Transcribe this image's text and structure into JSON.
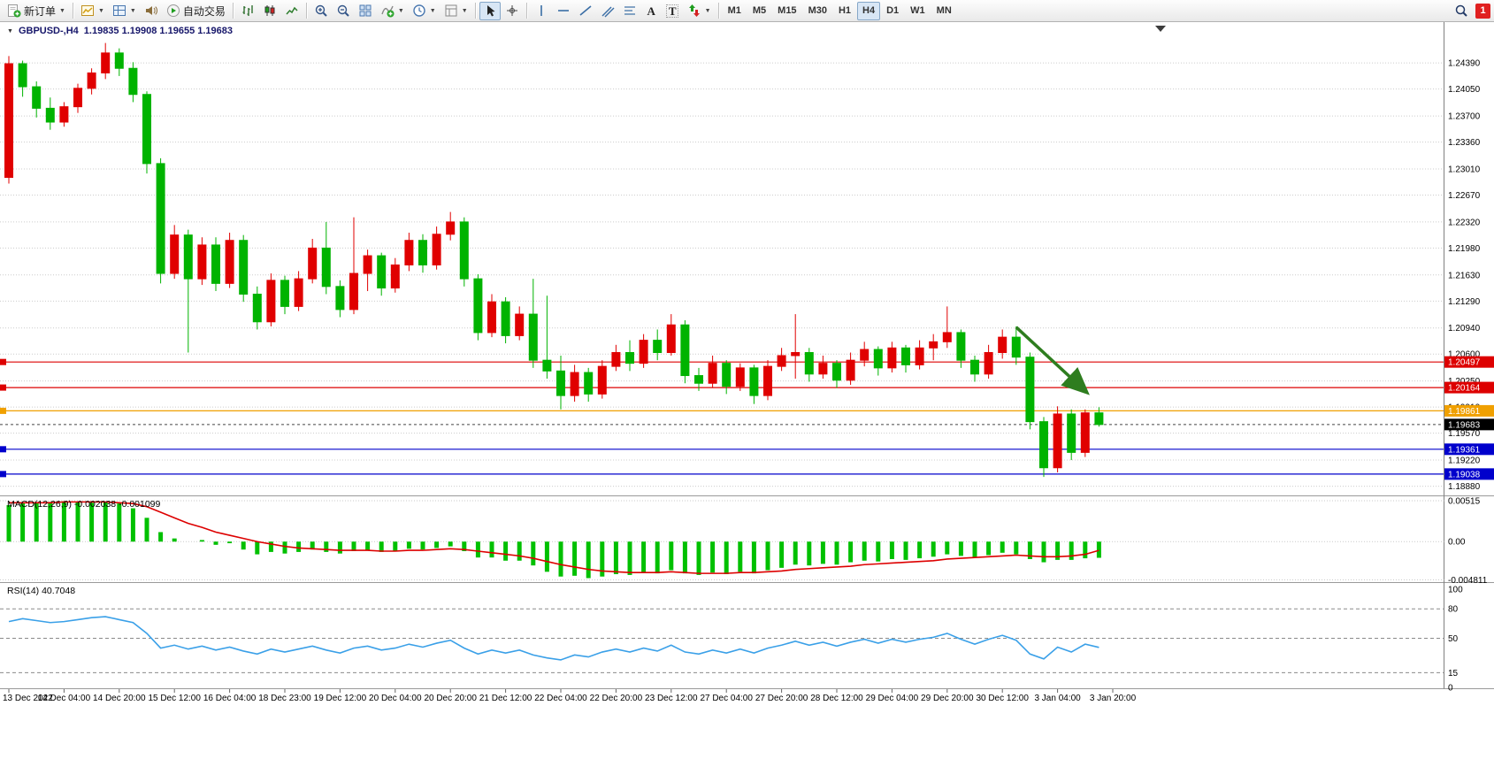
{
  "toolbar": {
    "new_order": "新订单",
    "autotrading": "自动交易",
    "timeframes": [
      "M1",
      "M5",
      "M15",
      "M30",
      "H1",
      "H4",
      "D1",
      "W1",
      "MN"
    ],
    "active_timeframe": "H4",
    "notification_count": "1",
    "text_tool_glyph": "A",
    "label_tool_glyph": "T"
  },
  "chart_header": {
    "symbol_period": "GBPUSD-,H4",
    "ohlc": "1.19835 1.19908 1.19655 1.19683"
  },
  "macd_header": "MACD(12,26,9) -0.002038 -0.001099",
  "rsi_header": "RSI(14) 40.7048",
  "chart_data": [
    {
      "type": "candlestick",
      "title": "GBPUSD-,H4",
      "ohlc_display": [
        1.19835,
        1.19908,
        1.19655,
        1.19683
      ],
      "up_color": "#e00000",
      "down_color": "#00b300",
      "y_ticks": [
        "1.24390",
        "1.24050",
        "1.23700",
        "1.23360",
        "1.23010",
        "1.22670",
        "1.22320",
        "1.21980",
        "1.21630",
        "1.21290",
        "1.20940",
        "1.20600",
        "1.20250",
        "1.19910",
        "1.19570",
        "1.19220",
        "1.18880"
      ],
      "price_lines": [
        {
          "value": 1.20497,
          "label": "1.20497",
          "color": "#dd0000"
        },
        {
          "value": 1.20164,
          "label": "1.20164",
          "color": "#dd0000"
        },
        {
          "value": 1.19861,
          "label": "1.19861",
          "color": "#f0a000"
        },
        {
          "value": 1.19361,
          "label": "1.19361",
          "color": "#0000cc"
        },
        {
          "value": 1.19038,
          "label": "1.19038",
          "color": "#0000cc"
        }
      ],
      "current_price": {
        "value": 1.19683,
        "label": "1.19683",
        "color": "#000000"
      },
      "trend_arrow": {
        "from": {
          "index": 73,
          "price": 1.2095
        },
        "to": {
          "index": 78,
          "price": 1.2012
        },
        "color": "#2e7d1f"
      },
      "x_labels": [
        {
          "i": 0,
          "t": "13 Dec 2022"
        },
        {
          "i": 4,
          "t": "14 Dec 04:00"
        },
        {
          "i": 8,
          "t": "14 Dec 20:00"
        },
        {
          "i": 12,
          "t": "15 Dec 12:00"
        },
        {
          "i": 16,
          "t": "16 Dec 04:00"
        },
        {
          "i": 20,
          "t": "18 Dec 23:00"
        },
        {
          "i": 24,
          "t": "19 Dec 12:00"
        },
        {
          "i": 28,
          "t": "20 Dec 04:00"
        },
        {
          "i": 32,
          "t": "20 Dec 20:00"
        },
        {
          "i": 36,
          "t": "21 Dec 12:00"
        },
        {
          "i": 40,
          "t": "22 Dec 04:00"
        },
        {
          "i": 44,
          "t": "22 Dec 20:00"
        },
        {
          "i": 48,
          "t": "23 Dec 12:00"
        },
        {
          "i": 52,
          "t": "27 Dec 04:00"
        },
        {
          "i": 56,
          "t": "27 Dec 20:00"
        },
        {
          "i": 60,
          "t": "28 Dec 12:00"
        },
        {
          "i": 64,
          "t": "29 Dec 04:00"
        },
        {
          "i": 68,
          "t": "29 Dec 20:00"
        },
        {
          "i": 72,
          "t": "30 Dec 12:00"
        },
        {
          "i": 76,
          "t": "3 Jan 04:00"
        },
        {
          "i": 80,
          "t": "3 Jan 20:00"
        }
      ],
      "candles": [
        [
          1.229,
          1.2448,
          1.2282,
          1.2438
        ],
        [
          1.2438,
          1.2442,
          1.2395,
          1.2408
        ],
        [
          1.2408,
          1.2415,
          1.2368,
          1.238
        ],
        [
          1.238,
          1.2394,
          1.2352,
          1.2362
        ],
        [
          1.2362,
          1.2388,
          1.2356,
          1.2382
        ],
        [
          1.2382,
          1.2412,
          1.2374,
          1.2406
        ],
        [
          1.2406,
          1.2432,
          1.2398,
          1.2426
        ],
        [
          1.2426,
          1.2465,
          1.2418,
          1.2452
        ],
        [
          1.2452,
          1.2458,
          1.2422,
          1.2432
        ],
        [
          1.2432,
          1.244,
          1.2388,
          1.2398
        ],
        [
          1.2398,
          1.2402,
          1.2295,
          1.2308
        ],
        [
          1.2308,
          1.2315,
          1.2152,
          1.2165
        ],
        [
          1.2165,
          1.2228,
          1.2158,
          1.2215
        ],
        [
          1.2215,
          1.2222,
          1.2062,
          1.2158
        ],
        [
          1.2158,
          1.2212,
          1.215,
          1.2202
        ],
        [
          1.2202,
          1.2212,
          1.2142,
          1.2152
        ],
        [
          1.2152,
          1.2218,
          1.2146,
          1.2208
        ],
        [
          1.2208,
          1.2215,
          1.2128,
          1.2138
        ],
        [
          1.2138,
          1.2148,
          1.2092,
          1.2102
        ],
        [
          1.2102,
          1.2165,
          1.2096,
          1.2156
        ],
        [
          1.2156,
          1.2162,
          1.2112,
          1.2122
        ],
        [
          1.2122,
          1.2168,
          1.2116,
          1.2158
        ],
        [
          1.2158,
          1.221,
          1.2152,
          1.2198
        ],
        [
          1.2198,
          1.2232,
          1.2138,
          1.2148
        ],
        [
          1.2148,
          1.2156,
          1.2108,
          1.2118
        ],
        [
          1.2118,
          1.2238,
          1.2112,
          1.2165
        ],
        [
          1.2165,
          1.2196,
          1.2142,
          1.2188
        ],
        [
          1.2188,
          1.2192,
          1.2136,
          1.2146
        ],
        [
          1.2146,
          1.2185,
          1.214,
          1.2176
        ],
        [
          1.2176,
          1.2218,
          1.2168,
          1.2208
        ],
        [
          1.2208,
          1.2216,
          1.2166,
          1.2176
        ],
        [
          1.2176,
          1.2226,
          1.217,
          1.2216
        ],
        [
          1.2216,
          1.2245,
          1.2208,
          1.2232
        ],
        [
          1.2232,
          1.2238,
          1.2148,
          1.2158
        ],
        [
          1.2158,
          1.2164,
          1.2078,
          1.2088
        ],
        [
          1.2088,
          1.2138,
          1.2082,
          1.2128
        ],
        [
          1.2128,
          1.2134,
          1.2074,
          1.2084
        ],
        [
          1.2084,
          1.2122,
          1.2078,
          1.2112
        ],
        [
          1.2112,
          1.2158,
          1.2042,
          1.2052
        ],
        [
          1.2052,
          1.2136,
          1.2028,
          1.2038
        ],
        [
          1.2038,
          1.2058,
          1.1988,
          1.2006
        ],
        [
          1.2006,
          1.2046,
          1.1998,
          1.2036
        ],
        [
          1.2036,
          1.2042,
          1.1998,
          1.2008
        ],
        [
          1.2008,
          1.2052,
          1.2002,
          1.2044
        ],
        [
          1.2044,
          1.2072,
          1.2038,
          1.2062
        ],
        [
          1.2062,
          1.2078,
          1.2038,
          1.2048
        ],
        [
          1.2048,
          1.2086,
          1.2042,
          1.2078
        ],
        [
          1.2078,
          1.2092,
          1.2052,
          1.2062
        ],
        [
          1.2062,
          1.2112,
          1.2058,
          1.2098
        ],
        [
          1.2098,
          1.2104,
          1.2022,
          1.2032
        ],
        [
          1.2032,
          1.2042,
          1.2012,
          1.2022
        ],
        [
          1.2022,
          1.2058,
          1.2016,
          1.2048
        ],
        [
          1.2048,
          1.2052,
          1.2008,
          1.2018
        ],
        [
          1.2018,
          1.2048,
          1.2012,
          1.2042
        ],
        [
          1.2042,
          1.2046,
          1.1995,
          1.2006
        ],
        [
          1.2006,
          1.2052,
          1.2,
          1.2044
        ],
        [
          1.2044,
          1.2068,
          1.2038,
          1.2058
        ],
        [
          1.2058,
          1.2112,
          1.2028,
          1.2062
        ],
        [
          1.2062,
          1.2068,
          1.2024,
          1.2034
        ],
        [
          1.2034,
          1.2058,
          1.2028,
          1.2048
        ],
        [
          1.2048,
          1.2052,
          1.2016,
          1.2026
        ],
        [
          1.2026,
          1.2062,
          1.202,
          1.2052
        ],
        [
          1.2052,
          1.2076,
          1.2044,
          1.2066
        ],
        [
          1.2066,
          1.207,
          1.2032,
          1.2042
        ],
        [
          1.2042,
          1.2076,
          1.2036,
          1.2068
        ],
        [
          1.2068,
          1.2072,
          1.2036,
          1.2046
        ],
        [
          1.2046,
          1.2078,
          1.204,
          1.2068
        ],
        [
          1.2068,
          1.2086,
          1.2052,
          1.2076
        ],
        [
          1.2076,
          1.2122,
          1.2068,
          1.2088
        ],
        [
          1.2088,
          1.2092,
          1.2042,
          1.2052
        ],
        [
          1.2052,
          1.2058,
          1.2024,
          1.2034
        ],
        [
          1.2034,
          1.2072,
          1.2028,
          1.2062
        ],
        [
          1.2062,
          1.2092,
          1.2054,
          1.2082
        ],
        [
          1.2082,
          1.2096,
          1.2046,
          1.2056
        ],
        [
          1.2056,
          1.2062,
          1.1962,
          1.1972
        ],
        [
          1.1972,
          1.1978,
          1.19,
          1.1912
        ],
        [
          1.1912,
          1.1992,
          1.1906,
          1.1982
        ],
        [
          1.1982,
          1.1988,
          1.1922,
          1.1932
        ],
        [
          1.1932,
          1.1988,
          1.1926,
          1.19835
        ],
        [
          1.19835,
          1.19908,
          1.19655,
          1.19683
        ]
      ]
    },
    {
      "type": "bar",
      "name": "MACD(12,26,9)",
      "values_label": "-0.002038 -0.001099",
      "y_ticks": [
        "0.00515",
        "0.00",
        "-0.004811"
      ],
      "ylim": [
        -0.0051,
        0.0056
      ],
      "histogram_color": "#00c000",
      "signal_color": "#dd0000",
      "histogram": [
        0.0046,
        0.0048,
        0.0049,
        0.005,
        0.0051,
        0.005,
        0.0049,
        0.005,
        0.0048,
        0.0042,
        0.003,
        0.0012,
        0.0004,
        0.0,
        0.0002,
        -0.0004,
        -0.0002,
        -0.001,
        -0.0016,
        -0.0013,
        -0.0015,
        -0.0013,
        -0.001,
        -0.0013,
        -0.0015,
        -0.0012,
        -0.0011,
        -0.0013,
        -0.0012,
        -0.0009,
        -0.001,
        -0.0008,
        -0.0006,
        -0.0012,
        -0.002,
        -0.002,
        -0.0024,
        -0.0024,
        -0.003,
        -0.0038,
        -0.0044,
        -0.0043,
        -0.0046,
        -0.0044,
        -0.0041,
        -0.0042,
        -0.0039,
        -0.004,
        -0.0036,
        -0.004,
        -0.0042,
        -0.0039,
        -0.0041,
        -0.0038,
        -0.004,
        -0.0036,
        -0.0033,
        -0.0029,
        -0.003,
        -0.0028,
        -0.0029,
        -0.0026,
        -0.0024,
        -0.0025,
        -0.0022,
        -0.0023,
        -0.0021,
        -0.0019,
        -0.0016,
        -0.0018,
        -0.002,
        -0.0017,
        -0.0014,
        -0.0016,
        -0.0022,
        -0.0026,
        -0.0023,
        -0.0023,
        -0.0021,
        -0.002038
      ],
      "signal": [
        0.0049,
        0.0049,
        0.0049,
        0.0049,
        0.005,
        0.005,
        0.005,
        0.005,
        0.0049,
        0.0048,
        0.0044,
        0.0037,
        0.003,
        0.0023,
        0.0018,
        0.0012,
        0.0008,
        0.0004,
        0.0,
        -0.0003,
        -0.0006,
        -0.0008,
        -0.0009,
        -0.001,
        -0.0011,
        -0.0011,
        -0.0011,
        -0.0012,
        -0.0012,
        -0.0011,
        -0.0011,
        -0.001,
        -0.0009,
        -0.001,
        -0.0012,
        -0.0014,
        -0.0016,
        -0.0018,
        -0.0021,
        -0.0025,
        -0.0029,
        -0.0032,
        -0.0035,
        -0.0037,
        -0.0038,
        -0.0039,
        -0.0039,
        -0.0039,
        -0.0038,
        -0.0039,
        -0.004,
        -0.004,
        -0.004,
        -0.0039,
        -0.0039,
        -0.0038,
        -0.0037,
        -0.0035,
        -0.0034,
        -0.0033,
        -0.0032,
        -0.0031,
        -0.0029,
        -0.0028,
        -0.0027,
        -0.0026,
        -0.0025,
        -0.0024,
        -0.0022,
        -0.0021,
        -0.002,
        -0.0019,
        -0.0018,
        -0.0017,
        -0.0018,
        -0.0019,
        -0.0019,
        -0.0018,
        -0.0016,
        -0.001099
      ]
    },
    {
      "type": "line",
      "name": "RSI(14)",
      "value_label": "40.7048",
      "y_ticks": [
        "100",
        "80",
        "50",
        "15",
        "0"
      ],
      "level_lines": [
        80,
        50,
        15
      ],
      "ylim": [
        0,
        100
      ],
      "color": "#3aa0e8",
      "values": [
        67,
        70,
        68,
        66,
        67,
        69,
        71,
        72,
        69,
        66,
        55,
        40,
        43,
        39,
        42,
        38,
        41,
        37,
        34,
        39,
        36,
        39,
        42,
        38,
        35,
        40,
        42,
        38,
        40,
        44,
        41,
        45,
        48,
        40,
        34,
        38,
        35,
        38,
        33,
        30,
        28,
        33,
        31,
        36,
        39,
        36,
        40,
        37,
        43,
        36,
        34,
        38,
        35,
        39,
        35,
        40,
        43,
        47,
        43,
        46,
        42,
        46,
        49,
        45,
        49,
        46,
        49,
        51,
        55,
        49,
        44,
        49,
        53,
        48,
        34,
        29,
        41,
        36,
        44,
        40.7
      ]
    }
  ]
}
